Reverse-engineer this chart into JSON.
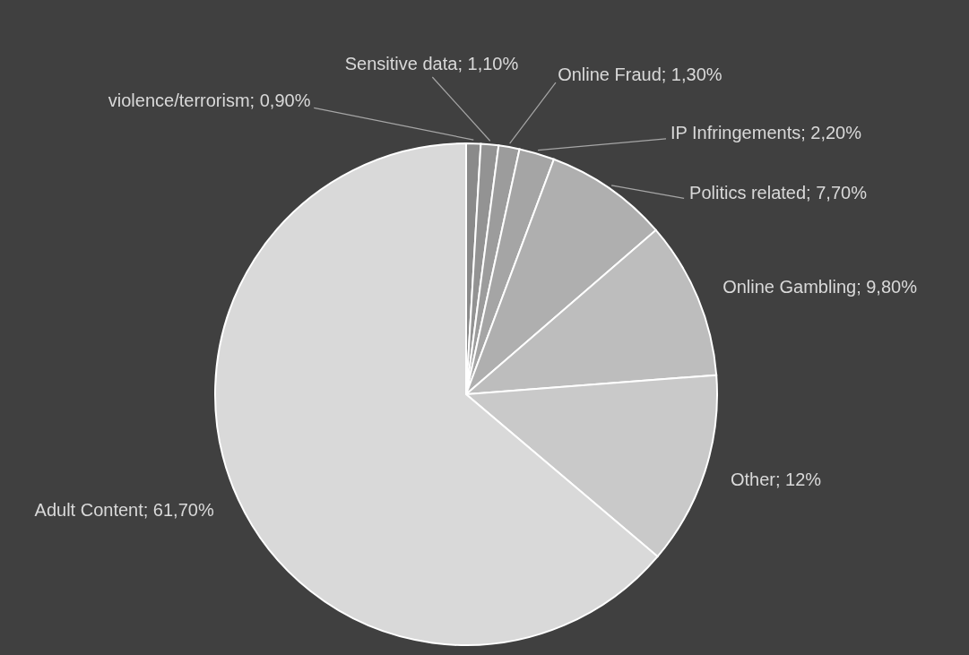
{
  "chart_data": {
    "type": "pie",
    "categories": [
      "violence/terrorism",
      "Sensitive data",
      "Online Fraud",
      "IP Infringements",
      "Politics related",
      "Online Gambling",
      "Other",
      "Adult Content"
    ],
    "values": [
      0.9,
      1.1,
      1.3,
      2.2,
      7.7,
      9.8,
      12,
      61.7
    ],
    "value_labels": [
      "0,90%",
      "1,10%",
      "1,30%",
      "2,20%",
      "7,70%",
      "9,80%",
      "12%",
      "61,70%"
    ],
    "colors": [
      "#8a8a8a",
      "#939393",
      "#9c9c9c",
      "#a5a5a5",
      "#afafaf",
      "#bdbdbd",
      "#c9c9c9",
      "#d9d9d9"
    ]
  }
}
